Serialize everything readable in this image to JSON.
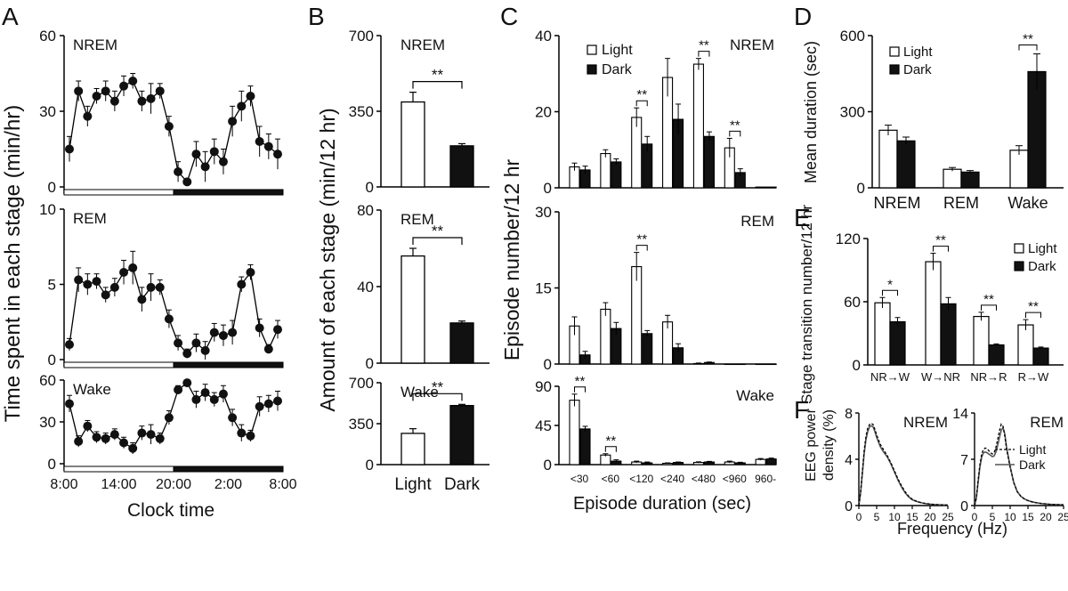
{
  "chart_data": [
    {
      "id": "A",
      "panel_letter": "A",
      "type": "line",
      "ylabel": "Time spent in each stage (min/hr)",
      "xlabel": "Clock time",
      "x_tick_labels": [
        "8:00",
        "14:00",
        "20:00",
        "2:00",
        "8:00"
      ],
      "subplots": [
        {
          "label": "NREM",
          "ylim": [
            0,
            60
          ],
          "yticks": [
            "0",
            "30",
            "60"
          ],
          "values": [
            15,
            38,
            28,
            36,
            38,
            34,
            40,
            42,
            34,
            35,
            38,
            24,
            6,
            2,
            13,
            8,
            14,
            10,
            26,
            32,
            36,
            18,
            16,
            13
          ],
          "errors": [
            5,
            4,
            4,
            3,
            4,
            4,
            4,
            3,
            4,
            6,
            3,
            4,
            4,
            1,
            5,
            6,
            5,
            5,
            6,
            6,
            4,
            6,
            5,
            6
          ]
        },
        {
          "label": "REM",
          "ylim": [
            0,
            10
          ],
          "yticks": [
            "0",
            "5",
            "10"
          ],
          "values": [
            1,
            5.3,
            5,
            5.2,
            4.3,
            4.8,
            5.8,
            6.1,
            4,
            4.8,
            4.8,
            2.7,
            1.1,
            0.4,
            1.1,
            0.6,
            1.8,
            1.6,
            1.8,
            5,
            5.8,
            2.1,
            0.7,
            2
          ],
          "errors": [
            0.4,
            0.8,
            0.7,
            0.5,
            0.5,
            0.6,
            0.8,
            1.1,
            0.8,
            0.9,
            0.5,
            0.6,
            0.5,
            0.3,
            0.6,
            0.6,
            0.6,
            0.7,
            0.8,
            0.5,
            0.5,
            0.6,
            0.3,
            0.6
          ]
        },
        {
          "label": "Wake",
          "ylim": [
            0,
            60
          ],
          "yticks": [
            "0",
            "30",
            "60"
          ],
          "values": [
            43,
            16,
            27,
            19,
            18,
            21,
            15,
            11,
            22,
            21,
            18,
            33,
            53,
            58,
            46,
            51,
            46,
            50,
            33,
            22,
            20,
            41,
            43,
            45
          ],
          "errors": [
            6,
            4,
            4,
            4,
            4,
            4,
            4,
            4,
            5,
            7,
            4,
            5,
            3,
            2,
            6,
            6,
            5,
            6,
            6,
            6,
            4,
            7,
            6,
            7
          ]
        }
      ]
    },
    {
      "id": "B",
      "panel_letter": "B",
      "type": "bar",
      "ylabel": "Amount of each stage (min/12 hr)",
      "categories": [
        "Light",
        "Dark"
      ],
      "significance": "**",
      "subplots": [
        {
          "label": "NREM",
          "ylim": [
            0,
            700
          ],
          "yticks": [
            "0",
            "350",
            "700"
          ],
          "values": [
            393,
            190
          ],
          "errors": [
            45,
            10
          ]
        },
        {
          "label": "REM",
          "ylim": [
            0,
            80
          ],
          "yticks": [
            "0",
            "40",
            "80"
          ],
          "values": [
            56,
            21
          ],
          "errors": [
            4,
            1
          ]
        },
        {
          "label": "Wake",
          "ylim": [
            0,
            700
          ],
          "yticks": [
            "0",
            "350",
            "700"
          ],
          "values": [
            267,
            505
          ],
          "errors": [
            40,
            10
          ]
        }
      ]
    },
    {
      "id": "C",
      "panel_letter": "C",
      "type": "bar",
      "ylabel": "Episode number/12 hr",
      "xlabel": "Episode duration (sec)",
      "categories": [
        "<30",
        "<60",
        "<120",
        "<240",
        "<480",
        "<960",
        "960-"
      ],
      "legend": [
        "Light",
        "Dark"
      ],
      "significance": "**",
      "subplots": [
        {
          "label": "NREM",
          "ylim": [
            0,
            40
          ],
          "yticks": [
            "0",
            "20",
            "40"
          ],
          "series": [
            {
              "name": "Light",
              "values": [
                5.5,
                9,
                18.5,
                29,
                32.5,
                10.5,
                0.2
              ],
              "errors": [
                1,
                1,
                2.5,
                5,
                1.5,
                2.5,
                0
              ]
            },
            {
              "name": "Dark",
              "values": [
                4.7,
                6.8,
                11.5,
                18,
                13.5,
                4,
                0.2
              ],
              "errors": [
                1,
                0.8,
                2,
                4,
                1.2,
                1,
                0
              ]
            }
          ],
          "sig_index": [
            2,
            4,
            5
          ]
        },
        {
          "label": "REM",
          "ylim": [
            0,
            30
          ],
          "yticks": [
            "0",
            "15",
            "30"
          ],
          "series": [
            {
              "name": "Light",
              "values": [
                7.5,
                10.8,
                19.2,
                8.3,
                0.1,
                0,
                0
              ],
              "errors": [
                1.8,
                1.3,
                2.8,
                1.3,
                0.1,
                0,
                0
              ]
            },
            {
              "name": "Dark",
              "values": [
                1.8,
                7,
                6,
                3.2,
                0.3,
                0,
                0
              ],
              "errors": [
                0.7,
                1.2,
                0.6,
                0.8,
                0.1,
                0,
                0
              ]
            }
          ],
          "sig_index": [
            2
          ]
        },
        {
          "label": "Wake",
          "ylim": [
            0,
            90
          ],
          "yticks": [
            "0",
            "45",
            "90"
          ],
          "series": [
            {
              "name": "Light",
              "values": [
                74,
                11,
                3,
                1.5,
                2.5,
                3,
                6
              ],
              "errors": [
                7,
                1.5,
                1,
                0.5,
                0.7,
                1,
                1
              ]
            },
            {
              "name": "Dark",
              "values": [
                41,
                4,
                2,
                2.5,
                3,
                2,
                6.5
              ],
              "errors": [
                3,
                1.5,
                1,
                0.5,
                0.7,
                0.7,
                1
              ]
            }
          ],
          "sig_index": [
            0,
            1
          ]
        }
      ]
    },
    {
      "id": "D",
      "panel_letter": "D",
      "type": "bar",
      "ylabel": "Mean duration (sec)",
      "categories": [
        "NREM",
        "REM",
        "Wake"
      ],
      "legend": [
        "Light",
        "Dark"
      ],
      "ylim": [
        0,
        600
      ],
      "yticks": [
        "0",
        "300",
        "600"
      ],
      "series": [
        {
          "name": "Light",
          "values": [
            227,
            73,
            148
          ],
          "errors": [
            20,
            7,
            18
          ]
        },
        {
          "name": "Dark",
          "values": [
            185,
            62,
            458
          ],
          "errors": [
            15,
            6,
            70
          ]
        }
      ],
      "significance": "**",
      "sig_index": [
        2
      ]
    },
    {
      "id": "E",
      "panel_letter": "E",
      "type": "bar",
      "ylabel": "Stage transition number/12 hr",
      "categories": [
        "NR→W",
        "W→NR",
        "NR→R",
        "R→W"
      ],
      "legend": [
        "Light",
        "Dark"
      ],
      "ylim": [
        0,
        120
      ],
      "yticks": [
        "0",
        "60",
        "120"
      ],
      "series": [
        {
          "name": "Light",
          "values": [
            59,
            98,
            46,
            38
          ],
          "errors": [
            5,
            8,
            4,
            5
          ]
        },
        {
          "name": "Dark",
          "values": [
            41,
            58,
            19,
            16
          ],
          "errors": [
            4,
            6,
            1,
            1
          ]
        }
      ],
      "significance_marks": [
        "*",
        "**",
        "**",
        "**"
      ]
    },
    {
      "id": "F",
      "panel_letter": "F",
      "type": "line",
      "ylabel": "EEG power density (%)",
      "xlabel": "Frequency (Hz)",
      "legend": [
        "Light",
        "Dark"
      ],
      "xticks": [
        "0",
        "5",
        "10",
        "15",
        "20",
        "25"
      ],
      "subplots": [
        {
          "label": "NREM",
          "ylim": [
            0,
            8
          ],
          "yticks": [
            "0",
            "4",
            "8"
          ],
          "x": [
            0,
            0.5,
            1,
            1.5,
            2,
            2.5,
            3,
            3.5,
            4,
            4.5,
            5,
            6,
            7,
            8,
            9,
            10,
            11,
            12,
            13,
            14,
            15,
            16,
            17,
            18,
            19,
            20,
            21,
            22,
            23,
            24,
            25
          ],
          "light": [
            0,
            1.2,
            3,
            4.8,
            6,
            6.7,
            7,
            7.1,
            7,
            6.6,
            6.1,
            5.3,
            4.8,
            4.3,
            3.7,
            3,
            2.3,
            1.7,
            1.2,
            0.8,
            0.55,
            0.4,
            0.3,
            0.22,
            0.17,
            0.13,
            0.1,
            0.08,
            0.06,
            0.05,
            0.04
          ],
          "dark": [
            0,
            1.1,
            2.8,
            4.5,
            5.7,
            6.4,
            6.8,
            6.9,
            6.8,
            6.4,
            5.9,
            5.1,
            4.6,
            4.2,
            3.6,
            2.9,
            2.2,
            1.6,
            1.1,
            0.75,
            0.5,
            0.38,
            0.28,
            0.21,
            0.16,
            0.12,
            0.09,
            0.07,
            0.06,
            0.05,
            0.04
          ]
        },
        {
          "label": "REM",
          "ylim": [
            0,
            14
          ],
          "yticks": [
            "0",
            "7",
            "14"
          ],
          "x": [
            0,
            0.5,
            1,
            1.5,
            2,
            2.5,
            3,
            3.5,
            4,
            4.5,
            5,
            5.5,
            6,
            6.5,
            7,
            7.5,
            8,
            8.5,
            9,
            10,
            11,
            12,
            13,
            14,
            15,
            16,
            17,
            18,
            19,
            20,
            21,
            22,
            23,
            24,
            25
          ],
          "light": [
            0,
            1.2,
            3.8,
            6.2,
            7.8,
            8.5,
            8.7,
            8.6,
            8.3,
            8,
            7.8,
            8,
            8.8,
            10,
            11.3,
            12.3,
            12,
            10.5,
            8.5,
            5.8,
            3.5,
            2.1,
            1.4,
            1,
            0.75,
            0.58,
            0.46,
            0.37,
            0.3,
            0.25,
            0.2,
            0.17,
            0.15,
            0.13,
            0.11
          ],
          "dark": [
            0,
            1.1,
            3.5,
            5.8,
            7.3,
            8,
            8.1,
            8,
            7.8,
            7.6,
            7.4,
            7.5,
            8.1,
            9.1,
            10.3,
            11.4,
            11.8,
            10.8,
            8.8,
            5.9,
            3.5,
            2.1,
            1.4,
            1,
            0.75,
            0.58,
            0.46,
            0.37,
            0.3,
            0.25,
            0.2,
            0.17,
            0.15,
            0.13,
            0.11
          ]
        }
      ]
    }
  ]
}
